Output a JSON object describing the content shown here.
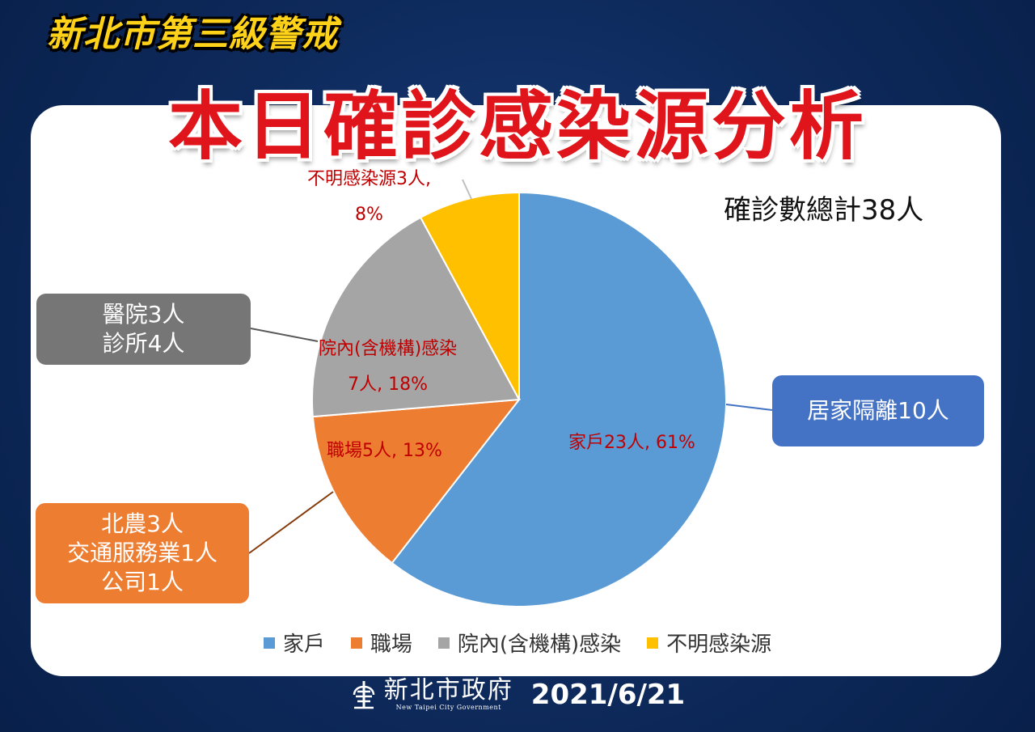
{
  "header": {
    "subtitle": "新北市第三級警戒",
    "title": "本日確診感染源分析"
  },
  "total_label": "確診數總計38人",
  "chart_data": {
    "type": "pie",
    "slices": [
      {
        "name": "家戶",
        "count": 23,
        "percent": 61,
        "color": "#5b9bd5",
        "label": "家戶23人, 61%"
      },
      {
        "name": "職場",
        "count": 5,
        "percent": 13,
        "color": "#ed7d31",
        "label": "職場5人, 13%"
      },
      {
        "name": "院內(含機構)感染",
        "count": 7,
        "percent": 18,
        "color": "#a5a5a5",
        "label_line1": "院內(含機構)感染",
        "label_line2": "7人, 18%"
      },
      {
        "name": "不明感染源",
        "count": 3,
        "percent": 8,
        "color": "#ffc000",
        "label_line1": "不明感染源3人,",
        "label_line2": "8%"
      }
    ],
    "legend": [
      "家戶",
      "職場",
      "院內(含機構)感染",
      "不明感染源"
    ],
    "legend_position": "bottom"
  },
  "callouts": {
    "hospital": {
      "line1": "醫院3人",
      "line2": "診所4人",
      "color": "#767676"
    },
    "workplace": {
      "line1": "北農3人",
      "line2": "交通服務業1人",
      "line3": "公司1人",
      "color": "#ed7d31"
    },
    "household": {
      "line1": "居家隔離10人",
      "color": "#4472c4"
    }
  },
  "footer": {
    "logo_zh": "新北市政府",
    "logo_en": "New Taipei City Government",
    "date": "2021/6/21"
  }
}
